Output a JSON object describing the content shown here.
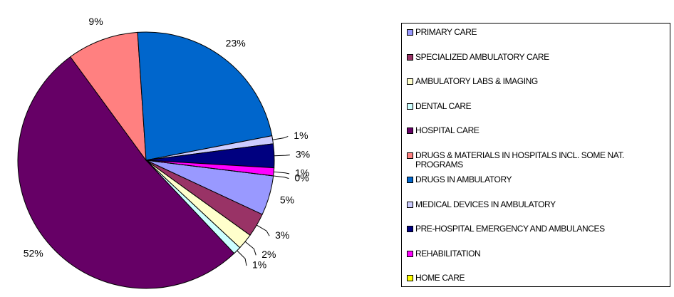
{
  "chart_data": {
    "type": "pie",
    "categories": [
      "PRIMARY CARE",
      "SPECIALIZED AMBULATORY CARE",
      "AMBULATORY LABS & IMAGING",
      "DENTAL CARE",
      "HOSPITAL CARE",
      "DRUGS & MATERIALS IN HOSPITALS INCL. SOME NAT. PROGRAMS",
      "DRUGS IN AMBULATORY",
      "MEDICAL DEVICES IN AMBULATORY",
      "PRE-HOSPITAL EMERGENCY AND AMBULANCES",
      "REHABILITATION",
      "HOME CARE"
    ],
    "values": [
      5,
      3,
      2,
      1,
      52,
      9,
      23,
      1,
      3,
      1,
      0
    ],
    "value_labels": [
      "5%",
      "3%",
      "2%",
      "1%",
      "52%",
      "9%",
      "23%",
      "1%",
      "3%",
      "1%",
      "0%"
    ],
    "colors": [
      "#9999ff",
      "#993366",
      "#ffffcc",
      "#ccffff",
      "#660066",
      "#ff8080",
      "#0066cc",
      "#ccccff",
      "#000080",
      "#ff00ff",
      "#ffff00"
    ],
    "legend": "right"
  }
}
